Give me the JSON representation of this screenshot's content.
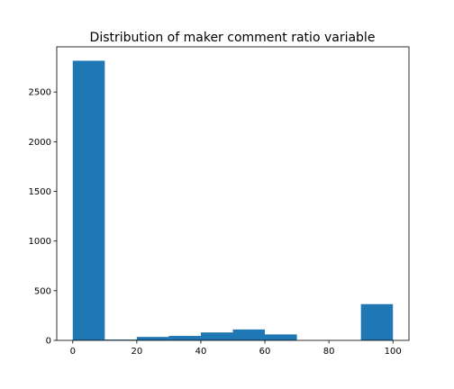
{
  "chart_data": {
    "type": "bar",
    "title": "Distribution of maker comment ratio variable",
    "xlabel": "",
    "ylabel": "",
    "bin_edges": [
      0,
      10,
      20,
      30,
      40,
      50,
      60,
      70,
      80,
      90,
      100
    ],
    "counts": [
      2815,
      8,
      35,
      45,
      80,
      110,
      60,
      0,
      0,
      365
    ],
    "xlim": [
      -5,
      105
    ],
    "ylim": [
      0,
      2955
    ],
    "xticks": [
      0,
      20,
      40,
      60,
      80,
      100
    ],
    "yticks": [
      0,
      500,
      1000,
      1500,
      2000,
      2500
    ],
    "bar_color": "#1f77b4",
    "grid": false,
    "legend": "none"
  }
}
